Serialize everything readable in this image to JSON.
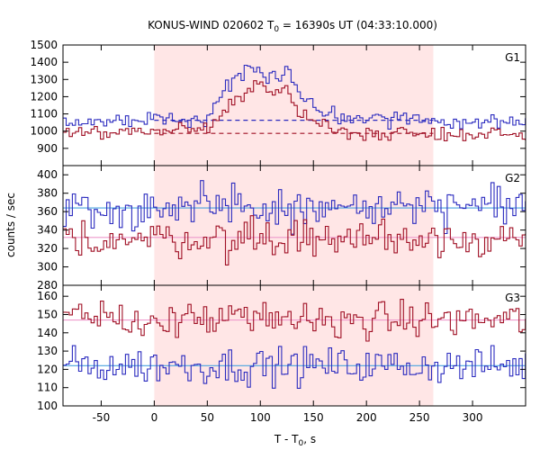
{
  "chart_data": {
    "type": "line",
    "title_main": "KONUS-WIND 020602 T",
    "title_sub": "0",
    "title_rest": " = 16390s UT (04:33:10.000)",
    "xlabel_main": "T - T",
    "xlabel_sub": "0",
    "xlabel_rest": ", s",
    "ylabel": "counts / sec",
    "xlim": [
      -86,
      350
    ],
    "x_ticks": [
      -50,
      0,
      50,
      100,
      150,
      200,
      250,
      300
    ],
    "highlight_interval": [
      0,
      263
    ],
    "colors": {
      "blue": "#2b2bbf",
      "red": "#a01025",
      "blue_bg": "#4aa3df",
      "red_bg": "#ee99cc",
      "shade": "#ffe6e6",
      "bin_width_s": 2.944
    },
    "panels": [
      {
        "label": "G1",
        "ylim": [
          800,
          1500
        ],
        "y_ticks": [
          900,
          1000,
          1100,
          1200,
          1300,
          1400,
          1500
        ],
        "series": [
          {
            "color": "blue",
            "background_level": 1063,
            "background_style": "dashed",
            "profile": [
              [
                -86,
                1058
              ],
              [
                0,
                1072
              ],
              [
                50,
                1085
              ],
              [
                58,
                1170
              ],
              [
                65,
                1230
              ],
              [
                72,
                1270
              ],
              [
                80,
                1300
              ],
              [
                90,
                1340
              ],
              [
                98,
                1370
              ],
              [
                104,
                1320
              ],
              [
                110,
                1300
              ],
              [
                118,
                1320
              ],
              [
                125,
                1360
              ],
              [
                132,
                1250
              ],
              [
                140,
                1200
              ],
              [
                150,
                1150
              ],
              [
                160,
                1110
              ],
              [
                175,
                1080
              ],
              [
                200,
                1070
              ],
              [
                350,
                1060
              ]
            ],
            "noise": 25
          },
          {
            "color": "red",
            "background_level": 987,
            "background_style": "dashed",
            "profile": [
              [
                -86,
                990
              ],
              [
                0,
                995
              ],
              [
                50,
                1010
              ],
              [
                58,
                1080
              ],
              [
                65,
                1130
              ],
              [
                72,
                1170
              ],
              [
                80,
                1200
              ],
              [
                90,
                1250
              ],
              [
                98,
                1270
              ],
              [
                104,
                1240
              ],
              [
                110,
                1220
              ],
              [
                118,
                1230
              ],
              [
                125,
                1250
              ],
              [
                132,
                1150
              ],
              [
                140,
                1100
              ],
              [
                150,
                1060
              ],
              [
                160,
                1030
              ],
              [
                175,
                1000
              ],
              [
                200,
                990
              ],
              [
                350,
                985
              ]
            ],
            "noise": 22
          }
        ]
      },
      {
        "label": "G2",
        "ylim": [
          280,
          410
        ],
        "y_ticks": [
          280,
          300,
          320,
          340,
          360,
          380,
          400
        ],
        "series": [
          {
            "color": "blue",
            "background_level": 364,
            "background_style": "solid",
            "profile": [
              [
                -86,
                362
              ],
              [
                350,
                364
              ]
            ],
            "noise": 11
          },
          {
            "color": "red",
            "background_level": 332,
            "background_style": "solid",
            "profile": [
              [
                -86,
                330
              ],
              [
                350,
                332
              ]
            ],
            "noise": 10
          }
        ]
      },
      {
        "label": "G3",
        "ylim": [
          100,
          166
        ],
        "y_ticks": [
          100,
          110,
          120,
          130,
          140,
          150,
          160
        ],
        "series": [
          {
            "color": "red",
            "background_level": 147,
            "background_style": "solid",
            "profile": [
              [
                -86,
                147
              ],
              [
                350,
                147
              ]
            ],
            "noise": 5
          },
          {
            "color": "blue",
            "background_level": 122,
            "background_style": "solid",
            "profile": [
              [
                -86,
                122
              ],
              [
                350,
                122
              ]
            ],
            "noise": 5
          }
        ]
      }
    ]
  }
}
